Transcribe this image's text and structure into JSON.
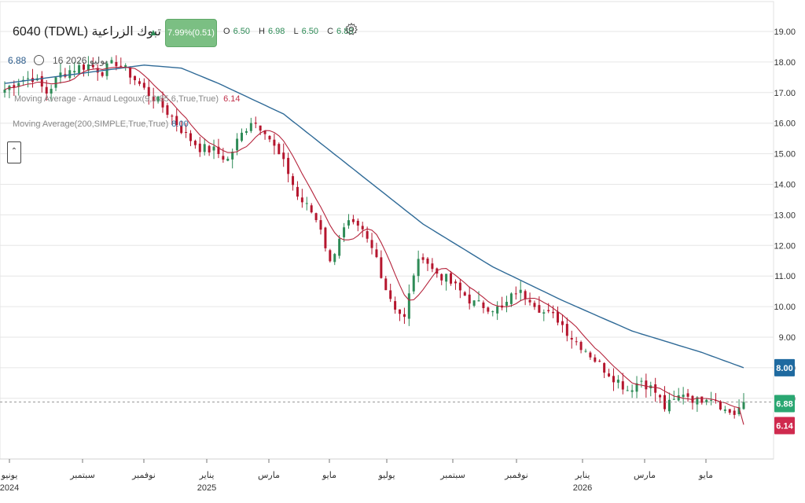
{
  "header": {
    "symbol": "6040  (TDWL) تبوك الزراعية",
    "change": "7.99%(0.51)",
    "ohlc": [
      {
        "k": "O",
        "v": "6.50"
      },
      {
        "k": "H",
        "v": "6.98"
      },
      {
        "k": "L",
        "v": "6.50"
      },
      {
        "k": "C",
        "v": "6.88"
      }
    ],
    "settings_icon": "gear-icon"
  },
  "sub": {
    "value": "6.88",
    "date": "16 2026 يوليو"
  },
  "indicators": {
    "ma1_label": "Moving Average - Arnaud Legoux(9,0.85,6,True,True)",
    "ma1_value": "6.14",
    "ma2_label": "Moving Average(200,SIMPLE,True,True)",
    "ma2_value": "8.00"
  },
  "colors": {
    "up": "#2e8b57",
    "down": "#b5162e",
    "ma_fast": "#b5243c",
    "ma_slow": "#2f6a97",
    "bg": "#ffffff"
  },
  "chart_data": {
    "type": "candlestick",
    "y_axis": {
      "range": [
        6.2,
        19.5
      ],
      "ticks": [
        "19.00",
        "18.00",
        "17.00",
        "16.00",
        "15.00",
        "14.00",
        "13.00",
        "12.00",
        "11.00",
        "10.00",
        "9.00",
        "8.00",
        "7.00"
      ]
    },
    "x_axis": [
      {
        "label": "يونيو",
        "year": "2024"
      },
      {
        "label": "سبتمبر",
        "year": ""
      },
      {
        "label": "نوفمبر",
        "year": ""
      },
      {
        "label": "يناير",
        "year": "2025"
      },
      {
        "label": "مارس",
        "year": ""
      },
      {
        "label": "مايو",
        "year": ""
      },
      {
        "label": "يوليو",
        "year": ""
      },
      {
        "label": "سبتمبر",
        "year": ""
      },
      {
        "label": "نوفمبر",
        "year": ""
      },
      {
        "label": "يناير",
        "year": "2026"
      },
      {
        "label": "مارس",
        "year": ""
      },
      {
        "label": "مايو",
        "year": ""
      }
    ],
    "price_path": [
      [
        0,
        17.1
      ],
      [
        3,
        17.4
      ],
      [
        6,
        17.5
      ],
      [
        9,
        17.0
      ],
      [
        12,
        17.6
      ],
      [
        15,
        17.8
      ],
      [
        18,
        17.9
      ],
      [
        21,
        17.7
      ],
      [
        24,
        18.0
      ],
      [
        27,
        17.6
      ],
      [
        30,
        17.1
      ],
      [
        33,
        16.7
      ],
      [
        36,
        16.2
      ],
      [
        39,
        15.6
      ],
      [
        42,
        15.2
      ],
      [
        45,
        15.1
      ],
      [
        48,
        14.8
      ],
      [
        50,
        15.4
      ],
      [
        53,
        16.1
      ],
      [
        56,
        15.8
      ],
      [
        58,
        15.2
      ],
      [
        61,
        14.4
      ],
      [
        63,
        13.6
      ],
      [
        66,
        13.1
      ],
      [
        68,
        12.6
      ],
      [
        70,
        11.4
      ],
      [
        72,
        12.3
      ],
      [
        74,
        12.7
      ],
      [
        77,
        12.4
      ],
      [
        80,
        11.6
      ],
      [
        82,
        10.6
      ],
      [
        84,
        10.0
      ],
      [
        86,
        9.6
      ],
      [
        88,
        11.1
      ],
      [
        90,
        11.7
      ],
      [
        92,
        11.2
      ],
      [
        95,
        10.9
      ],
      [
        98,
        10.5
      ],
      [
        101,
        10.1
      ],
      [
        104,
        10.0
      ],
      [
        107,
        9.9
      ],
      [
        110,
        10.5
      ],
      [
        113,
        10.3
      ],
      [
        116,
        9.8
      ],
      [
        119,
        9.6
      ],
      [
        122,
        9.0
      ],
      [
        125,
        8.6
      ],
      [
        128,
        8.1
      ],
      [
        131,
        7.7
      ],
      [
        134,
        7.3
      ],
      [
        137,
        7.6
      ],
      [
        140,
        7.2
      ],
      [
        142,
        6.7
      ],
      [
        144,
        6.9
      ],
      [
        146,
        7.2
      ],
      [
        149,
        6.9
      ],
      [
        151,
        7.1
      ],
      [
        153,
        7.0
      ],
      [
        155,
        6.6
      ],
      [
        157,
        6.5
      ],
      [
        159,
        6.88
      ]
    ],
    "price_end": 6.88,
    "ma_fast_end": 6.14,
    "ma_slow_end": 8.0,
    "ma_slow_path": [
      [
        0,
        17.3
      ],
      [
        20,
        17.7
      ],
      [
        30,
        17.9
      ],
      [
        38,
        17.8
      ],
      [
        46,
        17.3
      ],
      [
        60,
        16.3
      ],
      [
        75,
        14.5
      ],
      [
        90,
        12.7
      ],
      [
        105,
        11.3
      ],
      [
        120,
        10.2
      ],
      [
        135,
        9.2
      ],
      [
        150,
        8.5
      ],
      [
        159,
        8.0
      ]
    ],
    "current_price_dashed": 6.88
  }
}
